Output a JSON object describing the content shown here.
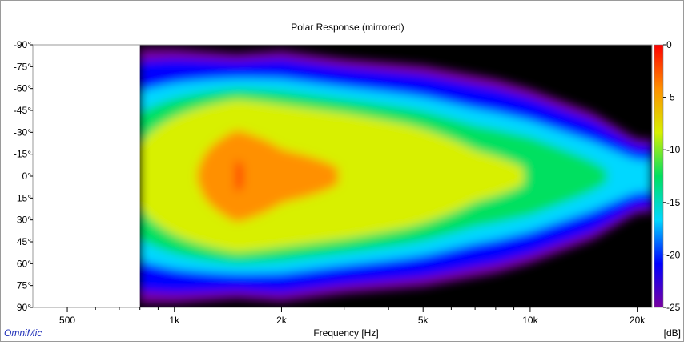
{
  "chart_data": {
    "type": "heatmap",
    "title": "Polar Response (mirrored)",
    "xlabel": "Frequency [Hz]",
    "ylabel": "",
    "x_scale": "log",
    "xlim": [
      400,
      22000
    ],
    "ylim": [
      -90,
      90
    ],
    "data_start_hz": 800,
    "x_ticks": [
      {
        "value": 500,
        "label": "500"
      },
      {
        "value": 1000,
        "label": "1k"
      },
      {
        "value": 2000,
        "label": "2k"
      },
      {
        "value": 5000,
        "label": "5k"
      },
      {
        "value": 10000,
        "label": "10k"
      },
      {
        "value": 20000,
        "label": "20k"
      }
    ],
    "x_minor_ticks": [
      600,
      700,
      800,
      900,
      3000,
      4000,
      6000,
      7000,
      8000,
      9000
    ],
    "y_ticks": [
      {
        "value": -90,
        "label": "-90°"
      },
      {
        "value": -75,
        "label": "-75°"
      },
      {
        "value": -60,
        "label": "-60°"
      },
      {
        "value": -45,
        "label": "-45°"
      },
      {
        "value": -30,
        "label": "-30°"
      },
      {
        "value": -15,
        "label": "-15°"
      },
      {
        "value": 0,
        "label": "0°"
      },
      {
        "value": 15,
        "label": "15°"
      },
      {
        "value": 30,
        "label": "30°"
      },
      {
        "value": 45,
        "label": "45°"
      },
      {
        "value": 60,
        "label": "60°"
      },
      {
        "value": 75,
        "label": "75°"
      },
      {
        "value": 90,
        "label": "90°"
      }
    ],
    "colorbar": {
      "unit": "[dB]",
      "min": -25,
      "max": 0,
      "ticks": [
        {
          "value": 0,
          "label": "0"
        },
        {
          "value": -5,
          "label": "-5"
        },
        {
          "value": -10,
          "label": "-10"
        },
        {
          "value": -15,
          "label": "-15"
        },
        {
          "value": -20,
          "label": "-20"
        },
        {
          "value": -25,
          "label": "-25"
        }
      ],
      "colors": [
        "#7a00a0",
        "#0000ff",
        "#00d8ff",
        "#00e060",
        "#d8f000",
        "#ff9000",
        "#ff0000"
      ]
    },
    "beamwidth_profile": [
      {
        "freq": 800,
        "half_width_deg": 76
      },
      {
        "freq": 1000,
        "half_width_deg": 76
      },
      {
        "freq": 1500,
        "half_width_deg": 73
      },
      {
        "freq": 2000,
        "half_width_deg": 75
      },
      {
        "freq": 3000,
        "half_width_deg": 70
      },
      {
        "freq": 5000,
        "half_width_deg": 66
      },
      {
        "freq": 8000,
        "half_width_deg": 58
      },
      {
        "freq": 10000,
        "half_width_deg": 52
      },
      {
        "freq": 15000,
        "half_width_deg": 38
      },
      {
        "freq": 20000,
        "half_width_deg": 22
      }
    ],
    "on_axis_level_db": [
      {
        "freq": 800,
        "db": -9
      },
      {
        "freq": 1500,
        "db": -0.5
      },
      {
        "freq": 2000,
        "db": -3
      },
      {
        "freq": 3000,
        "db": -4
      },
      {
        "freq": 4500,
        "db": -6
      },
      {
        "freq": 7000,
        "db": -9
      },
      {
        "freq": 10000,
        "db": -10
      },
      {
        "freq": 20000,
        "db": -14
      }
    ]
  },
  "brand": "OmniMic"
}
